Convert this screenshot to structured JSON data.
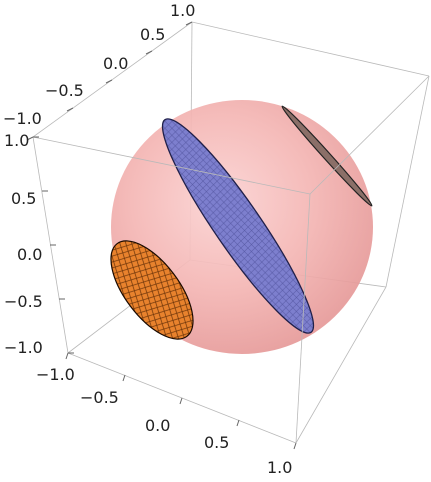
{
  "axes": {
    "top_ticks": [
      "1.0",
      "0.5",
      "0.0",
      "−0.5",
      "−1.0"
    ],
    "left_ticks": [
      "1.0",
      "0.5",
      "0.0",
      "−0.5",
      "−1.0"
    ],
    "bottom_ticks": [
      "−1.0",
      "−0.5",
      "0.0",
      "0.5",
      "1.0"
    ]
  },
  "colors": {
    "sphere": "#f0a4a4",
    "blue_disk": "#7c7ccd",
    "orange_disk": "#e8812c",
    "dark_disk": "#8b6f68",
    "box": "#b9b9b9"
  }
}
